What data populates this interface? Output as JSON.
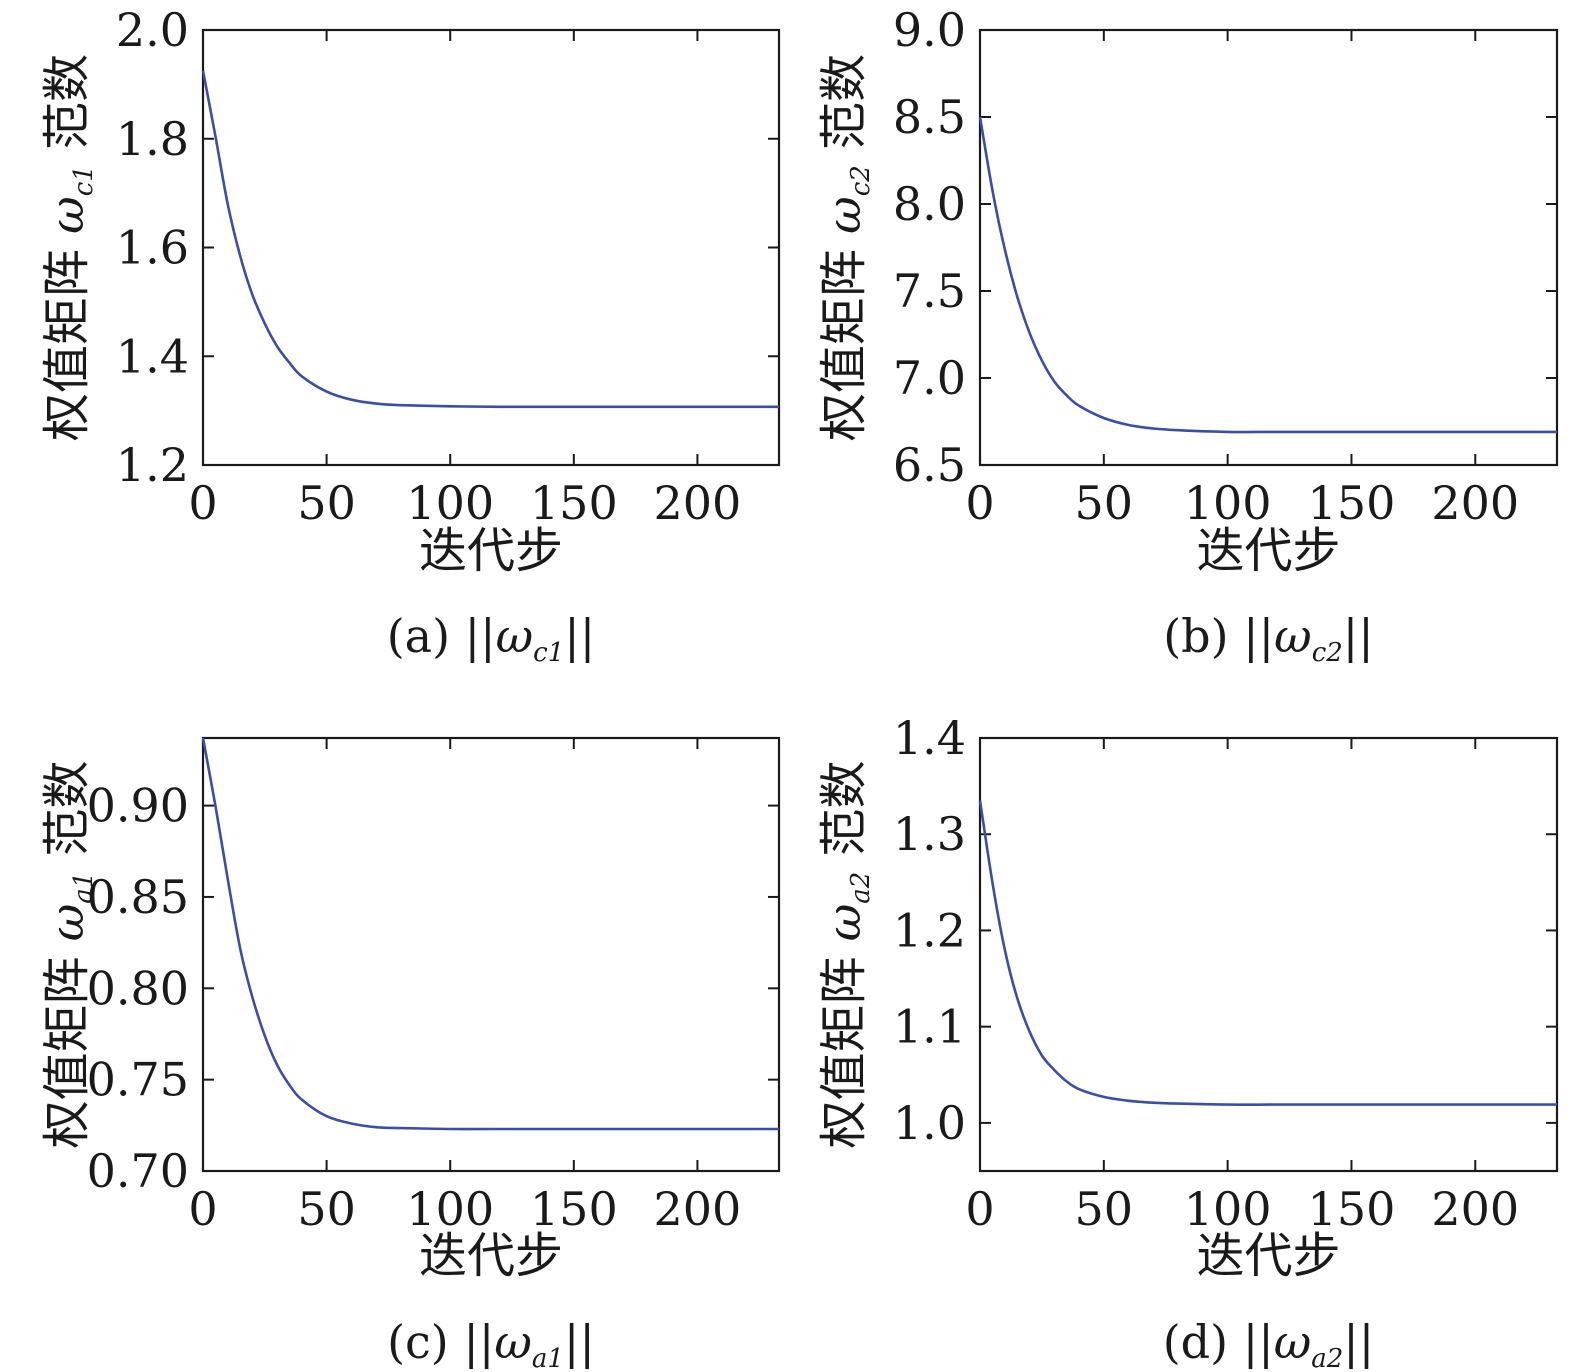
{
  "chart_data": [
    {
      "id": "a",
      "type": "line",
      "caption": {
        "prefix": "(a) ",
        "norm": "||",
        "symbol": "ω",
        "subscript": "c1"
      },
      "xlabel": "迭代步",
      "ylabel": {
        "prefix": "权值矩阵 ",
        "symbol": "ω",
        "subscript": "c1",
        "suffix": " 范数"
      },
      "xlim": [
        0,
        233
      ],
      "ylim": [
        1.2,
        2.0
      ],
      "xticks": [
        0,
        50,
        100,
        150,
        200
      ],
      "xticklabels": [
        "0",
        "50",
        "100",
        "150",
        "200"
      ],
      "yticks": [
        1.2,
        1.4,
        1.6,
        1.8,
        2.0
      ],
      "yticklabels": [
        "1.2",
        "1.4",
        "1.6",
        "1.8",
        "2.0"
      ],
      "line_color": "#3a4fa3",
      "series": [
        {
          "x": [
            0,
            5,
            10,
            15,
            20,
            25,
            30,
            35,
            40,
            50,
            60,
            70,
            80,
            100,
            120,
            150,
            200,
            233
          ],
          "y": [
            1.925,
            1.805,
            1.68,
            1.585,
            1.513,
            1.46,
            1.418,
            1.388,
            1.363,
            1.335,
            1.32,
            1.313,
            1.31,
            1.308,
            1.307,
            1.307,
            1.307,
            1.307
          ]
        }
      ]
    },
    {
      "id": "b",
      "type": "line",
      "caption": {
        "prefix": "(b) ",
        "norm": "||",
        "symbol": "ω",
        "subscript": "c2"
      },
      "xlabel": "迭代步",
      "ylabel": {
        "prefix": "权值矩阵 ",
        "symbol": "ω",
        "subscript": "c2",
        "suffix": " 范数"
      },
      "xlim": [
        0,
        233
      ],
      "ylim": [
        6.5,
        9.0
      ],
      "xticks": [
        0,
        50,
        100,
        150,
        200
      ],
      "xticklabels": [
        "0",
        "50",
        "100",
        "150",
        "200"
      ],
      "yticks": [
        6.5,
        7.0,
        7.5,
        8.0,
        8.5,
        9.0
      ],
      "yticklabels": [
        "6.5",
        "7.0",
        "7.5",
        "8.0",
        "8.5",
        "9.0"
      ],
      "line_color": "#3a4fa3",
      "series": [
        {
          "x": [
            0,
            5,
            10,
            15,
            20,
            25,
            30,
            35,
            40,
            50,
            60,
            70,
            80,
            100,
            120,
            150,
            200,
            233
          ],
          "y": [
            8.5,
            8.08,
            7.74,
            7.47,
            7.26,
            7.1,
            6.98,
            6.9,
            6.84,
            6.77,
            6.73,
            6.71,
            6.7,
            6.69,
            6.69,
            6.69,
            6.69,
            6.69
          ]
        }
      ]
    },
    {
      "id": "c",
      "type": "line",
      "caption": {
        "prefix": "(c) ",
        "norm": "||",
        "symbol": "ω",
        "subscript": "a1"
      },
      "xlabel": "迭代步",
      "ylabel": {
        "prefix": "权值矩阵 ",
        "symbol": "ω",
        "subscript": "a1",
        "suffix": " 范数"
      },
      "xlim": [
        0,
        233
      ],
      "ylim": [
        0.7,
        0.937
      ],
      "xticks": [
        0,
        50,
        100,
        150,
        200
      ],
      "xticklabels": [
        "0",
        "50",
        "100",
        "150",
        "200"
      ],
      "yticks": [
        0.7,
        0.75,
        0.8,
        0.85,
        0.9
      ],
      "yticklabels": [
        "0.70",
        "0.75",
        "0.80",
        "0.85",
        "0.90"
      ],
      "line_color": "#3a4fa3",
      "series": [
        {
          "x": [
            0,
            5,
            10,
            15,
            20,
            25,
            30,
            35,
            40,
            50,
            60,
            70,
            80,
            100,
            120,
            150,
            200,
            233
          ],
          "y": [
            0.937,
            0.9,
            0.86,
            0.822,
            0.795,
            0.774,
            0.758,
            0.747,
            0.739,
            0.73,
            0.726,
            0.724,
            0.7235,
            0.723,
            0.723,
            0.723,
            0.723,
            0.723
          ]
        }
      ]
    },
    {
      "id": "d",
      "type": "line",
      "caption": {
        "prefix": "(d) ",
        "norm": "||",
        "symbol": "ω",
        "subscript": "a2"
      },
      "xlabel": "迭代步",
      "ylabel": {
        "prefix": "权值矩阵 ",
        "symbol": "ω",
        "subscript": "a2",
        "suffix": " 范数"
      },
      "xlim": [
        0,
        233
      ],
      "ylim": [
        0.95,
        1.4
      ],
      "xticks": [
        0,
        50,
        100,
        150,
        200
      ],
      "xticklabels": [
        "0",
        "50",
        "100",
        "150",
        "200"
      ],
      "yticks": [
        1.0,
        1.1,
        1.2,
        1.3,
        1.4
      ],
      "yticklabels": [
        "1.0",
        "1.1",
        "1.2",
        "1.3",
        "1.4"
      ],
      "line_color": "#3a4fa3",
      "series": [
        {
          "x": [
            0,
            5,
            10,
            15,
            20,
            25,
            30,
            35,
            40,
            50,
            60,
            70,
            80,
            100,
            120,
            150,
            200,
            233
          ],
          "y": [
            1.335,
            1.25,
            1.18,
            1.13,
            1.095,
            1.07,
            1.055,
            1.043,
            1.035,
            1.027,
            1.023,
            1.021,
            1.02,
            1.019,
            1.019,
            1.019,
            1.019,
            1.019
          ]
        }
      ]
    }
  ]
}
